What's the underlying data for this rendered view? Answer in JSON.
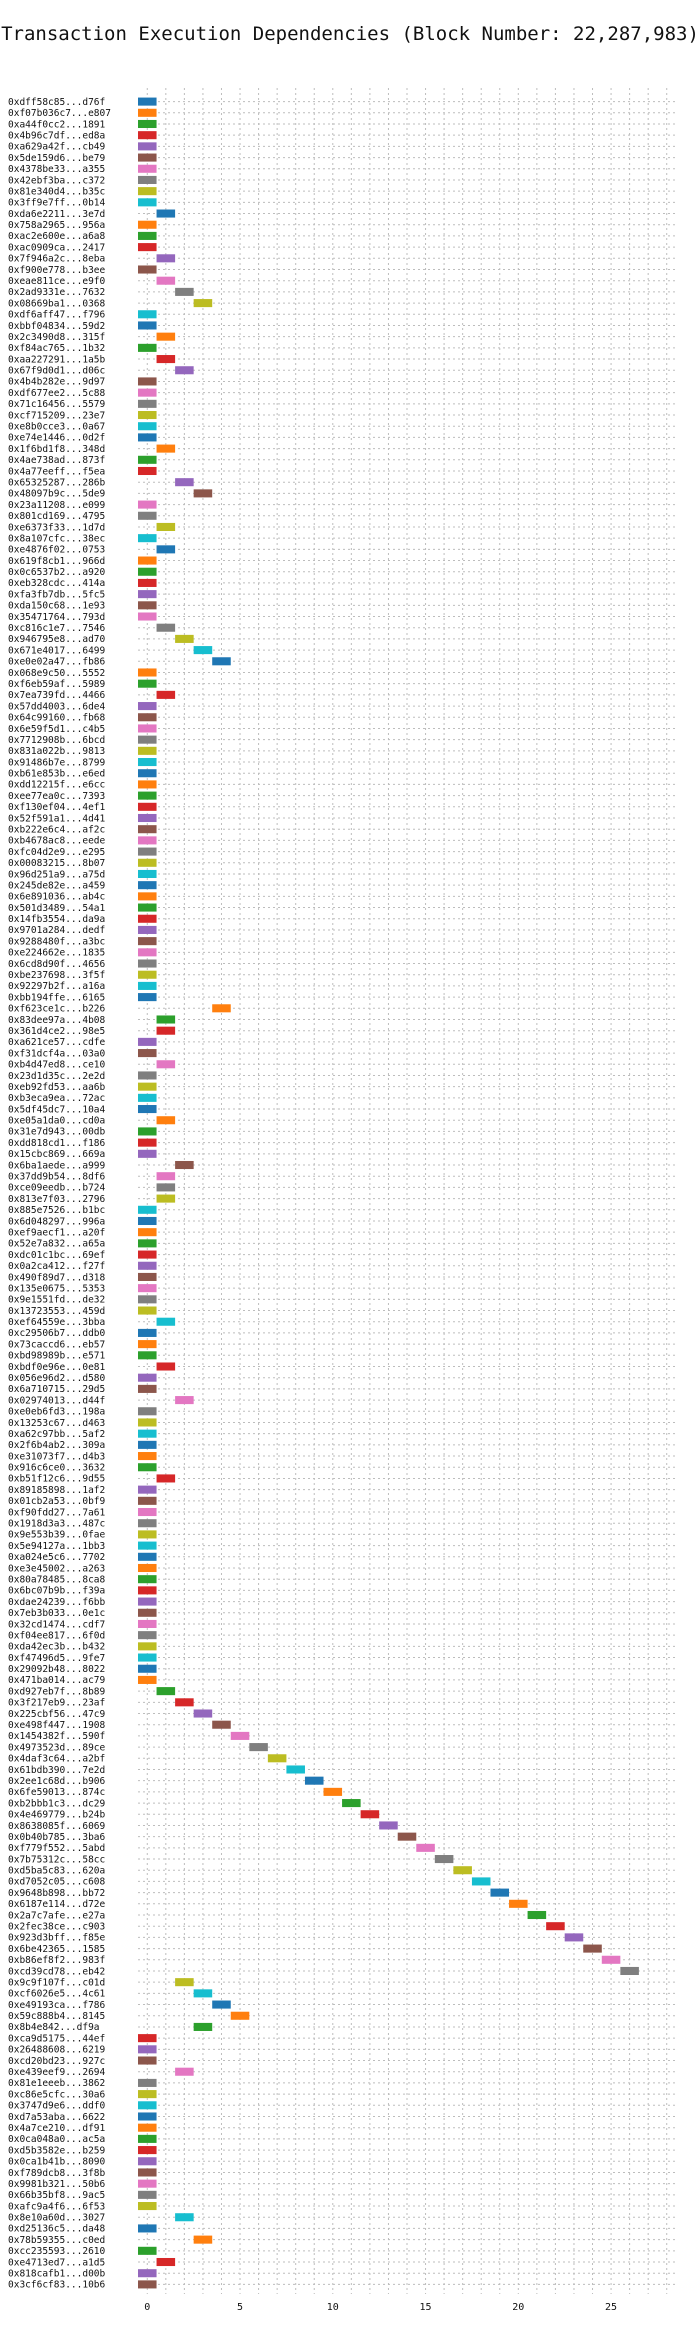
{
  "chart_data": {
    "type": "bar",
    "title": "Transaction Execution Dependencies (Block Number: 22,287,983)",
    "xlabel": "",
    "ylabel": "",
    "xlim": [
      -0.5,
      28.5
    ],
    "xticks": [
      0,
      5,
      10,
      15,
      20,
      25
    ],
    "grid": true,
    "palette": [
      "#1f77b4",
      "#ff7f0e",
      "#2ca02c",
      "#d62728",
      "#9467bd",
      "#8c564b",
      "#e377c2",
      "#7f7f7f",
      "#bcbd22",
      "#17becf"
    ],
    "transactions": [
      {
        "hash": "0xdff58c85...d76f",
        "start": 0
      },
      {
        "hash": "0xf07b036c7...e807",
        "start": 0
      },
      {
        "hash": "0xa44f0cc2...1891",
        "start": 0
      },
      {
        "hash": "0x4b96c7df...ed8a",
        "start": 0
      },
      {
        "hash": "0xa629a42f...cb49",
        "start": 0
      },
      {
        "hash": "0x5de159d6...be79",
        "start": 0
      },
      {
        "hash": "0x4378be33...a355",
        "start": 0
      },
      {
        "hash": "0x42ebf3ba...c372",
        "start": 0
      },
      {
        "hash": "0x81e340d4...b35c",
        "start": 0
      },
      {
        "hash": "0x3ff9e7ff...0b14",
        "start": 0
      },
      {
        "hash": "0xda6e2211...3e7d",
        "start": 1
      },
      {
        "hash": "0x758a2965...956a",
        "start": 0
      },
      {
        "hash": "0xac2e600e...a6a8",
        "start": 0
      },
      {
        "hash": "0xac0909ca...2417",
        "start": 0
      },
      {
        "hash": "0x7f946a2c...8eba",
        "start": 1
      },
      {
        "hash": "0xf900e778...b3ee",
        "start": 0
      },
      {
        "hash": "0xeae811ce...e9f0",
        "start": 1
      },
      {
        "hash": "0x2ad9331e...7632",
        "start": 2
      },
      {
        "hash": "0x08669ba1...0368",
        "start": 3
      },
      {
        "hash": "0xdf6aff47...f796",
        "start": 0
      },
      {
        "hash": "0xbbf04834...59d2",
        "start": 0
      },
      {
        "hash": "0x2c3490d8...315f",
        "start": 1
      },
      {
        "hash": "0xf84ac765...1b32",
        "start": 0
      },
      {
        "hash": "0xaa227291...1a5b",
        "start": 1
      },
      {
        "hash": "0x67f9d0d1...d06c",
        "start": 2
      },
      {
        "hash": "0x4b4b282e...9d97",
        "start": 0
      },
      {
        "hash": "0xdf677ee2...5c88",
        "start": 0
      },
      {
        "hash": "0x71c16456...5579",
        "start": 0
      },
      {
        "hash": "0xcf715209...23e7",
        "start": 0
      },
      {
        "hash": "0xe8b0cce3...0a67",
        "start": 0
      },
      {
        "hash": "0xe74e1446...0d2f",
        "start": 0
      },
      {
        "hash": "0x1f6bd1f8...348d",
        "start": 1
      },
      {
        "hash": "0x4ae738ad...873f",
        "start": 0
      },
      {
        "hash": "0x4a77eeff...f5ea",
        "start": 0
      },
      {
        "hash": "0x65325287...286b",
        "start": 2
      },
      {
        "hash": "0x48097b9c...5de9",
        "start": 3
      },
      {
        "hash": "0x23a11208...e099",
        "start": 0
      },
      {
        "hash": "0x801cd169...4795",
        "start": 0
      },
      {
        "hash": "0xe6373f33...1d7d",
        "start": 1
      },
      {
        "hash": "0x8a107cfc...38ec",
        "start": 0
      },
      {
        "hash": "0xe4876f02...0753",
        "start": 1
      },
      {
        "hash": "0x619f8cb1...966d",
        "start": 0
      },
      {
        "hash": "0x0c6537b2...a920",
        "start": 0
      },
      {
        "hash": "0xeb328cdc...414a",
        "start": 0
      },
      {
        "hash": "0xfa3fb7db...5fc5",
        "start": 0
      },
      {
        "hash": "0xda150c68...1e93",
        "start": 0
      },
      {
        "hash": "0x35471764...793d",
        "start": 0
      },
      {
        "hash": "0xc816c1e7...7546",
        "start": 1
      },
      {
        "hash": "0x946795e8...ad70",
        "start": 2
      },
      {
        "hash": "0x671e4017...6499",
        "start": 3
      },
      {
        "hash": "0xe0e02a47...fb86",
        "start": 4
      },
      {
        "hash": "0x068e9c50...5552",
        "start": 0
      },
      {
        "hash": "0xf6eb59af...5989",
        "start": 0
      },
      {
        "hash": "0x7ea739fd...4466",
        "start": 1
      },
      {
        "hash": "0x57dd4003...6de4",
        "start": 0
      },
      {
        "hash": "0x64c99160...fb68",
        "start": 0
      },
      {
        "hash": "0x6e59f5d1...c4b5",
        "start": 0
      },
      {
        "hash": "0x7712908b...6bcd",
        "start": 0
      },
      {
        "hash": "0x831a022b...9813",
        "start": 0
      },
      {
        "hash": "0x91486b7e...8799",
        "start": 0
      },
      {
        "hash": "0xb61e853b...e6ed",
        "start": 0
      },
      {
        "hash": "0xdd12215f...e6cc",
        "start": 0
      },
      {
        "hash": "0xee77ea0c...7393",
        "start": 0
      },
      {
        "hash": "0xf130ef04...4ef1",
        "start": 0
      },
      {
        "hash": "0x52f591a1...4d41",
        "start": 0
      },
      {
        "hash": "0xb222e6c4...af2c",
        "start": 0
      },
      {
        "hash": "0xb4678ac8...eede",
        "start": 0
      },
      {
        "hash": "0xfc04d2e9...e295",
        "start": 0
      },
      {
        "hash": "0x00083215...8b07",
        "start": 0
      },
      {
        "hash": "0x96d251a9...a75d",
        "start": 0
      },
      {
        "hash": "0x245de82e...a459",
        "start": 0
      },
      {
        "hash": "0x6e891036...ab4c",
        "start": 0
      },
      {
        "hash": "0x501d3489...54a1",
        "start": 0
      },
      {
        "hash": "0x14fb3554...da9a",
        "start": 0
      },
      {
        "hash": "0x9701a284...dedf",
        "start": 0
      },
      {
        "hash": "0x9288480f...a3bc",
        "start": 0
      },
      {
        "hash": "0xe224662e...1835",
        "start": 0
      },
      {
        "hash": "0x6cd8d90f...4656",
        "start": 0
      },
      {
        "hash": "0xbe237698...3f5f",
        "start": 0
      },
      {
        "hash": "0x92297b2f...a16a",
        "start": 0
      },
      {
        "hash": "0xbb194ffe...6165",
        "start": 0
      },
      {
        "hash": "0xf623ce1c...b226",
        "start": 4
      },
      {
        "hash": "0x83dee97a...4b08",
        "start": 1
      },
      {
        "hash": "0x361d4ce2...98e5",
        "start": 1
      },
      {
        "hash": "0xa621ce57...cdfe",
        "start": 0
      },
      {
        "hash": "0xf31dcf4a...03a0",
        "start": 0
      },
      {
        "hash": "0xb4d47ed8...ce10",
        "start": 1
      },
      {
        "hash": "0x23d1d35c...2e2d",
        "start": 0
      },
      {
        "hash": "0xeb92fd53...aa6b",
        "start": 0
      },
      {
        "hash": "0xb3eca9ea...72ac",
        "start": 0
      },
      {
        "hash": "0x5df45dc7...10a4",
        "start": 0
      },
      {
        "hash": "0xe05a1da0...cd0a",
        "start": 1
      },
      {
        "hash": "0x31e7d943...00db",
        "start": 0
      },
      {
        "hash": "0xdd818cd1...f186",
        "start": 0
      },
      {
        "hash": "0x15cbc869...669a",
        "start": 0
      },
      {
        "hash": "0x6ba1aede...a999",
        "start": 2
      },
      {
        "hash": "0x37dd9b54...8df6",
        "start": 1
      },
      {
        "hash": "0xce09eedb...b724",
        "start": 1
      },
      {
        "hash": "0x813e7f03...2796",
        "start": 1
      },
      {
        "hash": "0x885e7526...b1bc",
        "start": 0
      },
      {
        "hash": "0x6d048297...996a",
        "start": 0
      },
      {
        "hash": "0xef9aecf1...a20f",
        "start": 0
      },
      {
        "hash": "0x52e7a832...a65a",
        "start": 0
      },
      {
        "hash": "0xdc01c1bc...69ef",
        "start": 0
      },
      {
        "hash": "0x0a2ca412...f27f",
        "start": 0
      },
      {
        "hash": "0x490f89d7...d318",
        "start": 0
      },
      {
        "hash": "0x135e0675...5353",
        "start": 0
      },
      {
        "hash": "0x9e1551fd...de32",
        "start": 0
      },
      {
        "hash": "0x13723553...459d",
        "start": 0
      },
      {
        "hash": "0xef64559e...3bba",
        "start": 1
      },
      {
        "hash": "0xc29506b7...ddb0",
        "start": 0
      },
      {
        "hash": "0x73caccd6...eb57",
        "start": 0
      },
      {
        "hash": "0xbd98989b...e571",
        "start": 0
      },
      {
        "hash": "0xbdf0e96e...0e81",
        "start": 1
      },
      {
        "hash": "0x056e96d2...d580",
        "start": 0
      },
      {
        "hash": "0x6a710715...29d5",
        "start": 0
      },
      {
        "hash": "0x02974013...d44f",
        "start": 2
      },
      {
        "hash": "0xe0eb6fd3...198a",
        "start": 0
      },
      {
        "hash": "0x13253c67...d463",
        "start": 0
      },
      {
        "hash": "0xa62c97bb...5af2",
        "start": 0
      },
      {
        "hash": "0x2f6b4ab2...309a",
        "start": 0
      },
      {
        "hash": "0xe31073f7...d4b3",
        "start": 0
      },
      {
        "hash": "0x916c6ce0...3632",
        "start": 0
      },
      {
        "hash": "0xb51f12c6...9d55",
        "start": 1
      },
      {
        "hash": "0x89185898...1af2",
        "start": 0
      },
      {
        "hash": "0x01cb2a53...0bf9",
        "start": 0
      },
      {
        "hash": "0xf90fdd27...7a61",
        "start": 0
      },
      {
        "hash": "0x1918d3a3...487c",
        "start": 0
      },
      {
        "hash": "0x9e553b39...0fae",
        "start": 0
      },
      {
        "hash": "0x5e94127a...1bb3",
        "start": 0
      },
      {
        "hash": "0xa024e5c6...7702",
        "start": 0
      },
      {
        "hash": "0xe3e45002...a263",
        "start": 0
      },
      {
        "hash": "0x80a78485...8ca8",
        "start": 0
      },
      {
        "hash": "0x6bc07b9b...f39a",
        "start": 0
      },
      {
        "hash": "0xdae24239...f6bb",
        "start": 0
      },
      {
        "hash": "0x7eb3b033...0e1c",
        "start": 0
      },
      {
        "hash": "0x32cd1474...cdf7",
        "start": 0
      },
      {
        "hash": "0xf04ee817...6f0d",
        "start": 0
      },
      {
        "hash": "0xda42ec3b...b432",
        "start": 0
      },
      {
        "hash": "0xf47496d5...9fe7",
        "start": 0
      },
      {
        "hash": "0x29092b48...8022",
        "start": 0
      },
      {
        "hash": "0x471ba014...ac79",
        "start": 0
      },
      {
        "hash": "0xd927eb7f...8b89",
        "start": 1
      },
      {
        "hash": "0x3f217eb9...23af",
        "start": 2
      },
      {
        "hash": "0x225cbf56...47c9",
        "start": 3
      },
      {
        "hash": "0xe498f447...1908",
        "start": 4
      },
      {
        "hash": "0x1454382f...590f",
        "start": 5
      },
      {
        "hash": "0x4973523d...89ce",
        "start": 6
      },
      {
        "hash": "0x4daf3c64...a2bf",
        "start": 7
      },
      {
        "hash": "0x61bdb390...7e2d",
        "start": 8
      },
      {
        "hash": "0x2ee1c68d...b906",
        "start": 9
      },
      {
        "hash": "0x6fe59013...874c",
        "start": 10
      },
      {
        "hash": "0xb2bbb1c3...dc29",
        "start": 11
      },
      {
        "hash": "0x4e469779...b24b",
        "start": 12
      },
      {
        "hash": "0x8638085f...6069",
        "start": 13
      },
      {
        "hash": "0x0b40b785...3ba6",
        "start": 14
      },
      {
        "hash": "0xf779f552...5abd",
        "start": 15
      },
      {
        "hash": "0x7b75312c...58cc",
        "start": 16
      },
      {
        "hash": "0xd5ba5c83...620a",
        "start": 17
      },
      {
        "hash": "0xd7052c05...c608",
        "start": 18
      },
      {
        "hash": "0x9648b898...bb72",
        "start": 19
      },
      {
        "hash": "0x6187e114...d72e",
        "start": 20
      },
      {
        "hash": "0x2a7c7afe...e27a",
        "start": 21
      },
      {
        "hash": "0x2fec38ce...c903",
        "start": 22
      },
      {
        "hash": "0x923d3bff...f85e",
        "start": 23
      },
      {
        "hash": "0x6be42365...1585",
        "start": 24
      },
      {
        "hash": "0xb86ef8f2...983f",
        "start": 25
      },
      {
        "hash": "0xcd39cd78...eb42",
        "start": 26
      },
      {
        "hash": "0x9c9f107f...c01d",
        "start": 2
      },
      {
        "hash": "0xcf6026e5...4c61",
        "start": 3
      },
      {
        "hash": "0xe49193ca...f786",
        "start": 4
      },
      {
        "hash": "0x59c888b4...8145",
        "start": 5
      },
      {
        "hash": "0x8b4e842...df9a",
        "start": 3
      },
      {
        "hash": "0xca9d5175...44ef",
        "start": 0
      },
      {
        "hash": "0x26488608...6219",
        "start": 0
      },
      {
        "hash": "0xcd20bd23...927c",
        "start": 0
      },
      {
        "hash": "0xe439eef9...2694",
        "start": 2
      },
      {
        "hash": "0x81e1eeeb...3862",
        "start": 0
      },
      {
        "hash": "0xc86e5cfc...30a6",
        "start": 0
      },
      {
        "hash": "0x3747d9e6...ddf0",
        "start": 0
      },
      {
        "hash": "0xd7a53aba...6622",
        "start": 0
      },
      {
        "hash": "0x4a7ce210...df91",
        "start": 0
      },
      {
        "hash": "0x0ca048a0...ac5a",
        "start": 0
      },
      {
        "hash": "0xd5b3582e...b259",
        "start": 0
      },
      {
        "hash": "0x0ca1b41b...8090",
        "start": 0
      },
      {
        "hash": "0xf789dcb8...3f8b",
        "start": 0
      },
      {
        "hash": "0x9981b321...50b6",
        "start": 0
      },
      {
        "hash": "0x66b35bf8...9ac5",
        "start": 0
      },
      {
        "hash": "0xafc9a4f6...6f53",
        "start": 0
      },
      {
        "hash": "0x8e10a60d...3027",
        "start": 2
      },
      {
        "hash": "0xd25136c5...da48",
        "start": 0
      },
      {
        "hash": "0x78b59355...c0ed",
        "start": 3
      },
      {
        "hash": "0xcc235593...2610",
        "start": 0
      },
      {
        "hash": "0xe4713ed7...a1d5",
        "start": 1
      },
      {
        "hash": "0x818cafb1...d00b",
        "start": 0
      },
      {
        "hash": "0x3cf6cf83...10b6",
        "start": 0
      }
    ]
  }
}
